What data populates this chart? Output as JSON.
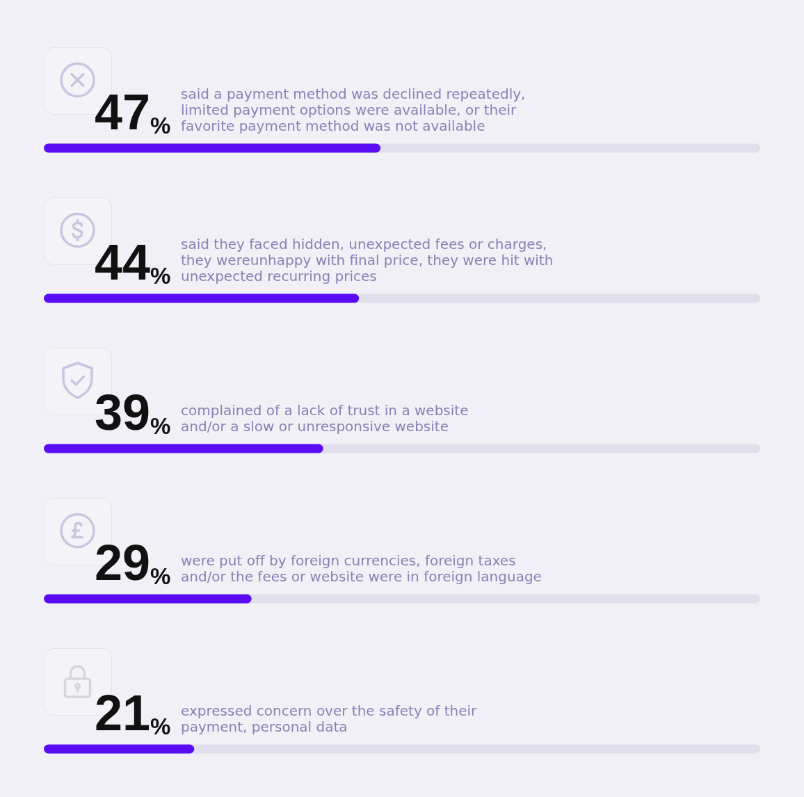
{
  "chart_data": {
    "type": "bar",
    "orientation": "horizontal",
    "categories": [
      "said a payment method was declined repeatedly,\nlimited payment options were available, or their\nfavorite payment method was not available",
      "said they faced hidden, unexpected fees or charges,\nthey wereunhappy with final price, they were hit with\nunexpected recurring prices",
      "complained of a lack of trust in a website\nand/or a slow or unresponsive website",
      "were put off by foreign currencies, foreign taxes\nand/or the fees or website were in foreign language",
      "expressed concern over the safety of their\npayment, personal data"
    ],
    "values": [
      47,
      44,
      39,
      29,
      21
    ],
    "value_labels": [
      "47%",
      "44%",
      "39%",
      "29%",
      "21%"
    ],
    "color": "#5a0df5",
    "xlim": [
      0,
      100
    ],
    "tick_labels": "y"
  }
}
